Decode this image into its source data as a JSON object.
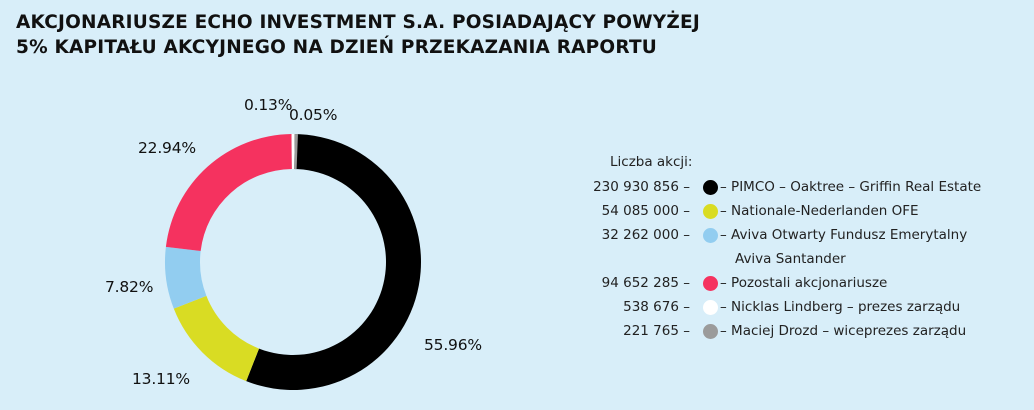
{
  "title": {
    "line1": "AKCJONARIUSZE ECHO INVESTMENT S.A. POSIADAJĄCY POWYŻEJ",
    "line2": "5% KAPITAŁU AKCYJNEGO NA DZIEŃ PRZEKAZANIA RAPORTU"
  },
  "legend_header": "Liczba akcji:",
  "chart_data": {
    "type": "pie",
    "title": "AKCJONARIUSZE ECHO INVESTMENT S.A. POSIADAJĄCY POWYŻEJ 5% KAPITAŁU AKCYJNEGO NA DZIEŃ PRZEKAZANIA RAPORTU",
    "donut": true,
    "legend_placement": "right",
    "slices": [
      {
        "label": "PIMCO – Oaktree – Griffin Real Estate",
        "shares": "230 930 856 –",
        "value": 55.96,
        "value_label": "55.96%",
        "color": "#000000"
      },
      {
        "label": "Nationale-Nederlanden OFE",
        "shares": "54 085 000 –",
        "value": 13.11,
        "value_label": "13.11%",
        "color": "#d9dc23"
      },
      {
        "label": "Aviva Otwarty Fundusz Emerytalny",
        "label_line2": "Aviva Santander",
        "shares": "32 262 000 –",
        "value": 7.82,
        "value_label": "7.82%",
        "color": "#92cdf0"
      },
      {
        "label": "Pozostali akcjonariusze",
        "shares": "94 652 285 –",
        "value": 22.94,
        "value_label": "22.94%",
        "color": "#f5325f"
      },
      {
        "label": "Nicklas Lindberg – prezes zarządu",
        "shares": "538 676 –",
        "value": 0.13,
        "value_label": "0.13%",
        "color": "#ffffff"
      },
      {
        "label": "Maciej Drozd – wiceprezes zarządu",
        "shares": "221 765 –",
        "value": 0.05,
        "value_label": "0.05%",
        "color": "#9b9b9b"
      }
    ]
  }
}
